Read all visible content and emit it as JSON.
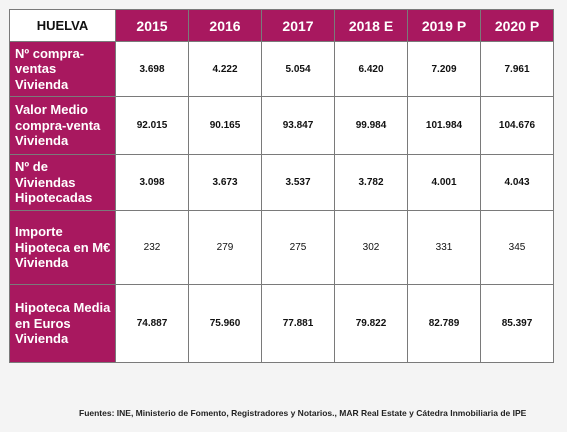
{
  "table": {
    "region": "HUELVA",
    "years": [
      "2015",
      "2016",
      "2017",
      "2018 E",
      "2019 P",
      "2020 P"
    ],
    "rows": [
      {
        "label": "Nº compra-ventas Vivienda",
        "values": [
          "3.698",
          "4.222",
          "5.054",
          "6.420",
          "7.209",
          "7.961"
        ]
      },
      {
        "label": "Valor Medio compra-venta Vivienda",
        "values": [
          "92.015",
          "90.165",
          "93.847",
          "99.984",
          "101.984",
          "104.676"
        ]
      },
      {
        "label": "Nº de Viviendas Hipotecadas",
        "values": [
          "3.098",
          "3.673",
          "3.537",
          "3.782",
          "4.001",
          "4.043"
        ]
      },
      {
        "label": "Importe Hipoteca en M€ Vivienda",
        "values": [
          "232",
          "279",
          "275",
          "302",
          "331",
          "345"
        ]
      },
      {
        "label": "Hipoteca Media en Euros Vivienda",
        "values": [
          "74.887",
          "75.960",
          "77.881",
          "79.822",
          "82.789",
          "85.397"
        ]
      }
    ]
  },
  "footer": {
    "sources": "Fuentes: INE, Ministerio de Fomento, Registradores y Notarios., MAR Real Estate y Cátedra Inmobiliaria de IPE"
  },
  "colors": {
    "header_accent": "#a8185f"
  }
}
